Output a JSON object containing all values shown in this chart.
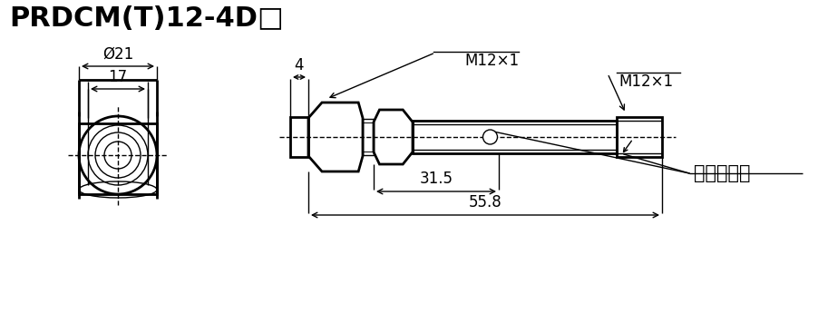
{
  "title": "PRDCM(T)12-4D□",
  "bg_color": "#ffffff",
  "line_color": "#000000",
  "title_fontsize": 22,
  "label_fontsize": 13,
  "dim_fontsize": 12,
  "indicator_label": "指示灯位置",
  "dim_558": "55.8",
  "dim_315": "31.5",
  "dim_21": "Ø21",
  "dim_17": "17",
  "dim_4": "4",
  "dim_m12x1_a": "M12×1",
  "dim_m12x1_b": "M12×1"
}
